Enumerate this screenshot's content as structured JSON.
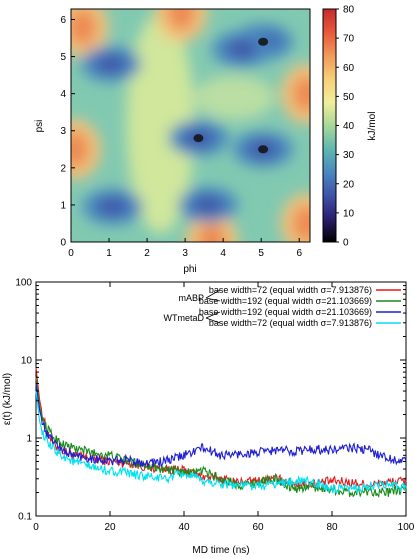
{
  "chart_data": [
    {
      "type": "heatmap",
      "xlabel": "phi",
      "ylabel": "psi",
      "xlim": [
        0,
        6.283
      ],
      "ylim": [
        0,
        6.283
      ],
      "xticks": [
        "0",
        "1",
        "2",
        "3",
        "4",
        "5",
        "6"
      ],
      "yticks": [
        "0",
        "1",
        "2",
        "3",
        "4",
        "5",
        "6"
      ],
      "colorbar": {
        "label": "kJ/mol",
        "range": [
          0,
          80
        ],
        "ticks": [
          "0",
          "10",
          "20",
          "30",
          "40",
          "50",
          "60",
          "70",
          "80"
        ],
        "stops": [
          "#000000",
          "#2a1e6e",
          "#3f53a8",
          "#4a88c0",
          "#5fb8b0",
          "#a8d898",
          "#f2ee9c",
          "#f8cf78",
          "#f09a5a",
          "#e8583a",
          "#c42a2a"
        ]
      },
      "features": {
        "high_regions": [
          [
            0.3,
            5.8
          ],
          [
            0.1,
            2.5
          ],
          [
            6.2,
            4.0
          ],
          [
            6.2,
            0.5
          ],
          [
            2.9,
            6.2
          ],
          [
            3.7,
            0.0
          ]
        ],
        "low_regions": [
          [
            5.05,
            5.4
          ],
          [
            5.05,
            2.5
          ],
          [
            3.35,
            2.8
          ],
          [
            1.05,
            4.8
          ],
          [
            1.1,
            0.95
          ],
          [
            3.6,
            1.0
          ],
          [
            4.5,
            5.2
          ]
        ],
        "minima": [
          [
            5.05,
            5.4
          ],
          [
            5.05,
            2.5
          ],
          [
            3.35,
            2.8
          ]
        ]
      }
    },
    {
      "type": "line",
      "xlabel": "MD time (ns)",
      "ylabel": "ε(t) (kJ/mol)",
      "xlim": [
        0,
        100
      ],
      "ylim": [
        0.1,
        100
      ],
      "yscale": "log",
      "grid": false,
      "legend_position": "top-right",
      "xticks": [
        "0",
        "20",
        "40",
        "60",
        "80",
        "100"
      ],
      "yticks": [
        "0.1",
        "1",
        "10",
        "100"
      ],
      "group_labels": [
        {
          "label": "mABP",
          "series": [
            0,
            1
          ]
        },
        {
          "label": "WTmetaD",
          "series": [
            2,
            3
          ]
        }
      ],
      "series": [
        {
          "name": "base width=72 (equal width σ=7.913876)",
          "color": "#e41a1c",
          "x": [
            0,
            1,
            2,
            3,
            5,
            7,
            10,
            15,
            20,
            25,
            30,
            35,
            40,
            45,
            50,
            55,
            60,
            65,
            70,
            75,
            80,
            85,
            90,
            95,
            100
          ],
          "y": [
            8,
            3,
            1.8,
            1.2,
            0.8,
            0.7,
            0.6,
            0.55,
            0.5,
            0.48,
            0.42,
            0.4,
            0.38,
            0.32,
            0.3,
            0.27,
            0.28,
            0.3,
            0.26,
            0.26,
            0.28,
            0.27,
            0.25,
            0.27,
            0.28
          ]
        },
        {
          "name": "base width=192 (equal width σ=21.103669)",
          "color": "#1a8a1a",
          "x": [
            0,
            1,
            2,
            3,
            5,
            7,
            10,
            15,
            20,
            25,
            30,
            35,
            40,
            45,
            50,
            55,
            60,
            65,
            70,
            75,
            80,
            85,
            90,
            95,
            100
          ],
          "y": [
            6,
            2.5,
            1.6,
            1.3,
            1.0,
            0.85,
            0.75,
            0.65,
            0.6,
            0.5,
            0.45,
            0.4,
            0.35,
            0.38,
            0.3,
            0.25,
            0.27,
            0.3,
            0.22,
            0.24,
            0.22,
            0.2,
            0.21,
            0.2,
            0.22
          ]
        },
        {
          "name": "base width=192 (equal width σ=21.103669)",
          "color": "#1e1ed2",
          "x": [
            0,
            1,
            2,
            3,
            5,
            7,
            10,
            15,
            20,
            25,
            30,
            35,
            40,
            45,
            50,
            55,
            60,
            65,
            70,
            75,
            80,
            85,
            90,
            95,
            100
          ],
          "y": [
            5,
            2.2,
            1.5,
            1.1,
            0.9,
            0.7,
            0.6,
            0.55,
            0.5,
            0.52,
            0.48,
            0.5,
            0.6,
            0.75,
            0.6,
            0.62,
            0.65,
            0.7,
            0.68,
            0.72,
            0.7,
            0.75,
            0.7,
            0.55,
            0.5
          ]
        },
        {
          "name": "base width=72 (equal width σ=7.913876)",
          "color": "#00e0f0",
          "x": [
            0,
            1,
            2,
            3,
            5,
            7,
            10,
            15,
            20,
            25,
            30,
            35,
            40,
            45,
            50,
            55,
            60,
            65,
            70,
            75,
            80,
            85,
            90,
            95,
            100
          ],
          "y": [
            4,
            1.6,
            1.1,
            0.85,
            0.7,
            0.6,
            0.5,
            0.42,
            0.38,
            0.35,
            0.32,
            0.3,
            0.35,
            0.28,
            0.26,
            0.25,
            0.24,
            0.26,
            0.28,
            0.27,
            0.22,
            0.22,
            0.24,
            0.25,
            0.23
          ]
        }
      ]
    }
  ]
}
